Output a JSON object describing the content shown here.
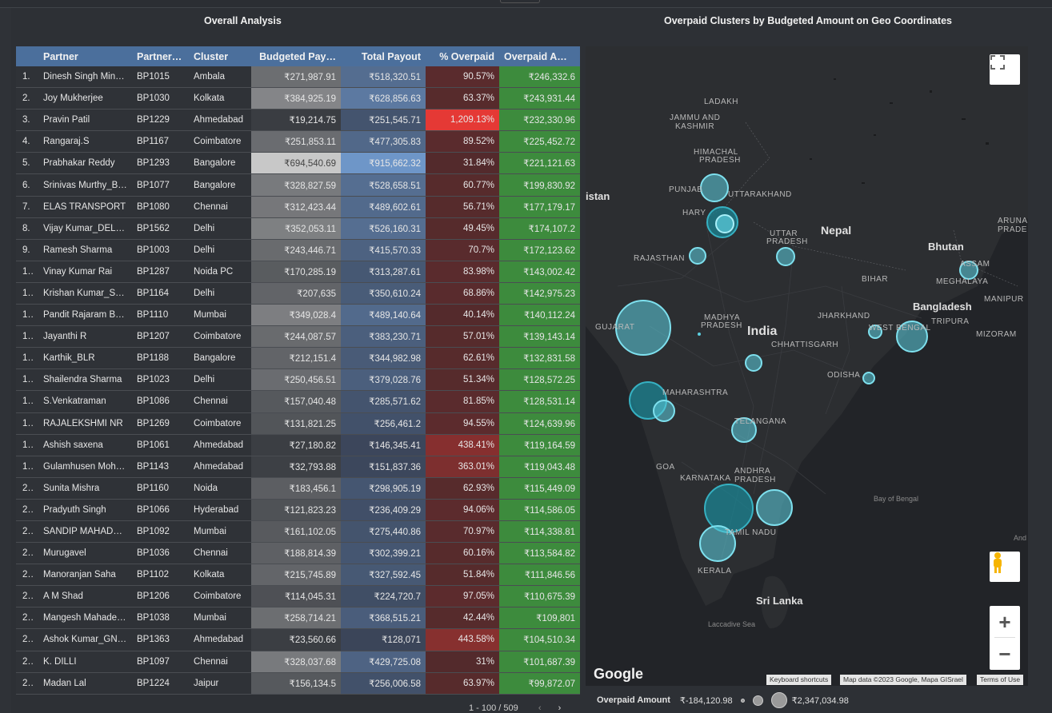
{
  "titles": {
    "left": "Overall Analysis",
    "right": "Overpaid Clusters by Budgeted Amount on Geo Coordinates"
  },
  "table": {
    "headers": [
      "Partner",
      "Partner…",
      "Cluster",
      "Budgeted Pay…",
      "Total Payout",
      "% Overpaid",
      "Overpaid A…"
    ],
    "rows": [
      {
        "idx": "1.",
        "partner": "Dinesh Singh Min…",
        "pid": "BP1015",
        "cluster": "Ambala",
        "budget": "₹271,987.91",
        "payout": "₹518,320.51",
        "over": "90.57%",
        "amt": "₹246,332.6",
        "b": 0.35,
        "p": 0.5,
        "o": 0.07
      },
      {
        "idx": "2.",
        "partner": "Joy Mukherjee",
        "pid": "BP1030",
        "cluster": "Kolkata",
        "budget": "₹384,925.19",
        "payout": "₹628,856.63",
        "over": "63.37%",
        "amt": "₹243,931.44",
        "b": 0.52,
        "p": 0.65,
        "o": 0.05
      },
      {
        "idx": "3.",
        "partner": "Pravin Patil",
        "pid": "BP1229",
        "cluster": "Ahmedabad",
        "budget": "₹19,214.75",
        "payout": "₹251,545.71",
        "over": "1,209.13%",
        "amt": "₹232,330.96",
        "b": 0.0,
        "p": 0.2,
        "o": 1.0
      },
      {
        "idx": "4.",
        "partner": "Rangaraj.S",
        "pid": "BP1167",
        "cluster": "Coimbatore",
        "budget": "₹251,853.11",
        "payout": "₹477,305.83",
        "over": "89.52%",
        "amt": "₹225,452.72",
        "b": 0.34,
        "p": 0.44,
        "o": 0.07
      },
      {
        "idx": "5.",
        "partner": "Prabhakar Reddy",
        "pid": "BP1293",
        "cluster": "Bangalore",
        "budget": "₹694,540.69",
        "payout": "₹915,662.32",
        "over": "31.84%",
        "amt": "₹221,121.63",
        "b": 1.0,
        "p": 1.0,
        "o": 0.02
      },
      {
        "idx": "6.",
        "partner": "Srinivas Murthy_B…",
        "pid": "BP1077",
        "cluster": "Bangalore",
        "budget": "₹328,827.59",
        "payout": "₹528,658.51",
        "over": "60.77%",
        "amt": "₹199,830.92",
        "b": 0.44,
        "p": 0.51,
        "o": 0.05
      },
      {
        "idx": "7.",
        "partner": "ELAS TRANSPORT",
        "pid": "BP1080",
        "cluster": "Chennai",
        "budget": "₹312,423.44",
        "payout": "₹489,602.61",
        "over": "56.71%",
        "amt": "₹177,179.17",
        "b": 0.42,
        "p": 0.46,
        "o": 0.04
      },
      {
        "idx": "8.",
        "partner": "Vijay Kumar_DEL…",
        "pid": "BP1562",
        "cluster": "Delhi",
        "budget": "₹352,053.11",
        "payout": "₹526,160.31",
        "over": "49.45%",
        "amt": "₹174,107.2",
        "b": 0.48,
        "p": 0.51,
        "o": 0.04
      },
      {
        "idx": "9.",
        "partner": "Ramesh Sharma",
        "pid": "BP1003",
        "cluster": "Delhi",
        "budget": "₹243,446.71",
        "payout": "₹415,570.33",
        "over": "70.7%",
        "amt": "₹172,123.62",
        "b": 0.33,
        "p": 0.37,
        "o": 0.06
      },
      {
        "idx": "1…",
        "partner": "Vinay Kumar Rai",
        "pid": "BP1287",
        "cluster": "Noida PC",
        "budget": "₹170,285.19",
        "payout": "₹313,287.61",
        "over": "83.98%",
        "amt": "₹143,002.42",
        "b": 0.22,
        "p": 0.24,
        "o": 0.07
      },
      {
        "idx": "1…",
        "partner": "Krishan Kumar_S…",
        "pid": "BP1164",
        "cluster": "Delhi",
        "budget": "₹207,635",
        "payout": "₹350,610.24",
        "over": "68.86%",
        "amt": "₹142,975.23",
        "b": 0.28,
        "p": 0.29,
        "o": 0.06
      },
      {
        "idx": "1…",
        "partner": "Pandit Rajaram B…",
        "pid": "BP1110",
        "cluster": "Mumbai",
        "budget": "₹349,028.4",
        "payout": "₹489,140.64",
        "over": "40.14%",
        "amt": "₹140,112.24",
        "b": 0.47,
        "p": 0.46,
        "o": 0.03
      },
      {
        "idx": "1…",
        "partner": "Jayanthi R",
        "pid": "BP1207",
        "cluster": "Coimbatore",
        "budget": "₹244,087.57",
        "payout": "₹383,230.71",
        "over": "57.01%",
        "amt": "₹139,143.14",
        "b": 0.33,
        "p": 0.33,
        "o": 0.04
      },
      {
        "idx": "1…",
        "partner": "Karthik_BLR",
        "pid": "BP1188",
        "cluster": "Bangalore",
        "budget": "₹212,151.4",
        "payout": "₹344,982.98",
        "over": "62.61%",
        "amt": "₹132,831.58",
        "b": 0.28,
        "p": 0.28,
        "o": 0.05
      },
      {
        "idx": "1…",
        "partner": "Shailendra Sharma",
        "pid": "BP1023",
        "cluster": "Delhi",
        "budget": "₹250,456.51",
        "payout": "₹379,028.76",
        "over": "51.34%",
        "amt": "₹128,572.25",
        "b": 0.34,
        "p": 0.33,
        "o": 0.04
      },
      {
        "idx": "1…",
        "partner": "S.Venkatraman",
        "pid": "BP1086",
        "cluster": "Chennai",
        "budget": "₹157,040.48",
        "payout": "₹285,571.62",
        "over": "81.85%",
        "amt": "₹128,531.14",
        "b": 0.2,
        "p": 0.2,
        "o": 0.07
      },
      {
        "idx": "1…",
        "partner": "RAJALEKSHMI NR",
        "pid": "BP1269",
        "cluster": "Coimbatore",
        "budget": "₹131,821.25",
        "payout": "₹256,461.2",
        "over": "94.55%",
        "amt": "₹124,639.96",
        "b": 0.17,
        "p": 0.16,
        "o": 0.08
      },
      {
        "idx": "1…",
        "partner": "Ashish saxena",
        "pid": "BP1061",
        "cluster": "Ahmedabad",
        "budget": "₹27,180.82",
        "payout": "₹146,345.41",
        "over": "438.41%",
        "amt": "₹119,164.59",
        "b": 0.01,
        "p": 0.03,
        "o": 0.36
      },
      {
        "idx": "1…",
        "partner": "Gulamhusen Moh…",
        "pid": "BP1143",
        "cluster": "Ahmedabad",
        "budget": "₹32,793.88",
        "payout": "₹151,837.36",
        "over": "363.01%",
        "amt": "₹119,043.48",
        "b": 0.02,
        "p": 0.04,
        "o": 0.3
      },
      {
        "idx": "2…",
        "partner": "Sunita Mishra",
        "pid": "BP1160",
        "cluster": "Noida",
        "budget": "₹183,456.1",
        "payout": "₹298,905.19",
        "over": "62.93%",
        "amt": "₹115,449.09",
        "b": 0.24,
        "p": 0.22,
        "o": 0.05
      },
      {
        "idx": "2…",
        "partner": "Pradyuth Singh",
        "pid": "BP1066",
        "cluster": "Hyderabad",
        "budget": "₹121,823.23",
        "payout": "₹236,409.29",
        "over": "94.06%",
        "amt": "₹114,586.05",
        "b": 0.15,
        "p": 0.14,
        "o": 0.08
      },
      {
        "idx": "2…",
        "partner": "SANDIP MAHADE…",
        "pid": "BP1092",
        "cluster": "Mumbai",
        "budget": "₹161,102.05",
        "payout": "₹275,440.86",
        "over": "70.97%",
        "amt": "₹114,338.81",
        "b": 0.21,
        "p": 0.19,
        "o": 0.06
      },
      {
        "idx": "2…",
        "partner": "Murugavel",
        "pid": "BP1036",
        "cluster": "Chennai",
        "budget": "₹188,814.39",
        "payout": "₹302,399.21",
        "over": "60.16%",
        "amt": "₹113,584.82",
        "b": 0.25,
        "p": 0.22,
        "o": 0.05
      },
      {
        "idx": "2…",
        "partner": "Manoranjan Saha",
        "pid": "BP1102",
        "cluster": "Kolkata",
        "budget": "₹215,745.89",
        "payout": "₹327,592.45",
        "over": "51.84%",
        "amt": "₹111,846.56",
        "b": 0.29,
        "p": 0.25,
        "o": 0.04
      },
      {
        "idx": "2…",
        "partner": "A M Shad",
        "pid": "BP1206",
        "cluster": "Coimbatore",
        "budget": "₹114,045.31",
        "payout": "₹224,720.7",
        "over": "97.05%",
        "amt": "₹110,675.39",
        "b": 0.14,
        "p": 0.12,
        "o": 0.08
      },
      {
        "idx": "2…",
        "partner": "Mangesh Mahade…",
        "pid": "BP1038",
        "cluster": "Mumbai",
        "budget": "₹258,714.21",
        "payout": "₹368,515.21",
        "over": "42.44%",
        "amt": "₹109,801",
        "b": 0.35,
        "p": 0.31,
        "o": 0.04
      },
      {
        "idx": "2…",
        "partner": "Ashok Kumar_GN…",
        "pid": "BP1363",
        "cluster": "Ahmedabad",
        "budget": "₹23,560.66",
        "payout": "₹128,071",
        "over": "443.58%",
        "amt": "₹104,510.34",
        "b": 0.01,
        "p": 0.01,
        "o": 0.37
      },
      {
        "idx": "2…",
        "partner": "K. DILLI",
        "pid": "BP1097",
        "cluster": "Chennai",
        "budget": "₹328,037.68",
        "payout": "₹429,725.08",
        "over": "31%",
        "amt": "₹101,687.39",
        "b": 0.44,
        "p": 0.38,
        "o": 0.02
      },
      {
        "idx": "2…",
        "partner": "Madan Lal",
        "pid": "BP1224",
        "cluster": "Jaipur",
        "budget": "₹156,134.5",
        "payout": "₹256,006.58",
        "over": "63.97%",
        "amt": "₹99,872.07",
        "b": 0.2,
        "p": 0.16,
        "o": 0.05
      }
    ],
    "pager": "1 - 100 / 509",
    "pager_prev": "‹",
    "pager_next": "›"
  },
  "map": {
    "labels": {
      "ladakh": "LADAKH",
      "jk1": "JAMMU AND",
      "jk2": "KASHMIR",
      "hp1": "HIMACHAL",
      "hp2": "PRADESH",
      "punjab": "PUNJAB",
      "uttarakhand": "UTTARAKHAND",
      "haryana": "HARY",
      "pakistan": "istan",
      "nepal": "Nepal",
      "bhutan": "Bhutan",
      "up1": "UTTAR",
      "up2": "PRADESH",
      "rajasthan": "RAJASTHAN",
      "bihar": "BIHAR",
      "assam": "ASSAM",
      "meghalaya": "MEGHALAYA",
      "arunachal1": "ARUNA",
      "arunachal2": "PRADE",
      "manipur": "MANIPUR",
      "bangladesh": "Bangladesh",
      "jharkhand": "JHARKHAND",
      "westbengal": "WEST BENGAL",
      "tripura": "TRIPURA",
      "mizoram": "MIZORAM",
      "gujarat": "GUJARAT",
      "mp1": "MADHYA",
      "mp2": "PRADESH",
      "india": "India",
      "chhattisgarh": "CHHATTISGARH",
      "odisha": "ODISHA",
      "maharashtra": "MAHARASHTRA",
      "telangana": "TELANGANA",
      "goa": "GOA",
      "karnataka": "KARNATAKA",
      "andhra1": "ANDHRA",
      "andhra2": "PRADESH",
      "tamilnadu": "TAMIL NADU",
      "kerala": "KERALA",
      "bayofbengal": "Bay of Bengal",
      "srilanka": "Sri Lanka",
      "laccadive": "Laccadive Sea",
      "and": "And"
    },
    "google": "Google",
    "attrib_shortcuts": "Keyboard shortcuts",
    "attrib_data": "Map data ©2023 Google, Mapa GISrael",
    "attrib_terms": "Terms of Use",
    "zoom_in": "+",
    "zoom_out": "−"
  },
  "legend": {
    "label": "Overpaid Amount",
    "min": "₹-184,120.98",
    "max": "₹2,347,034.98"
  },
  "colors": {
    "header": "#4b6f9c",
    "amount_green": "#3d8b3d",
    "bubble": "#5ccfe0",
    "overpaid_red": "#e53935"
  }
}
